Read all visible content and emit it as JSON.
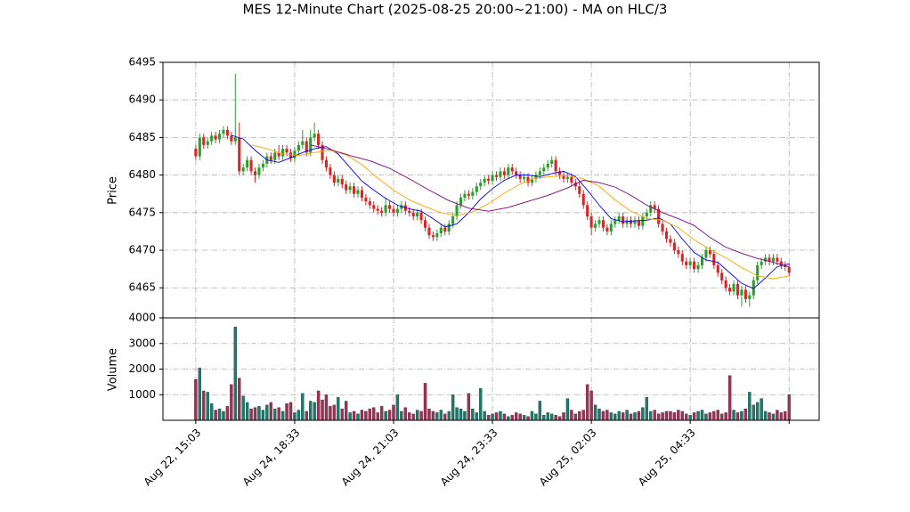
{
  "chart_data": {
    "type": "candlestick",
    "title": "MES 12-Minute Chart (2025-08-25 20:00~21:00) - MA on HLC/3",
    "ylabel": "Price",
    "volume_label": "Volume",
    "up_color": "#2ca02c",
    "down_color": "#d62728",
    "up_volume_color": "#197a6a",
    "down_volume_color": "#9c3055",
    "grid": true,
    "xlim": [
      -8.3,
      157.6
    ],
    "xticks": [
      {
        "value": 0,
        "label": "Aug 22, 15:03"
      },
      {
        "value": 25,
        "label": "Aug 24, 18:33"
      },
      {
        "value": 50,
        "label": "Aug 24, 21:03"
      },
      {
        "value": 75,
        "label": "Aug 24, 23:33"
      },
      {
        "value": 100,
        "label": "Aug 25, 02:03"
      },
      {
        "value": 125,
        "label": "Aug 25, 04:33"
      },
      {
        "value": 150,
        "label": null
      }
    ],
    "ylim": [
      6461,
      6495
    ],
    "yticks": [
      6465,
      6470,
      6475,
      6480,
      6485,
      6490,
      6495
    ],
    "volume_ylim": [
      0,
      4000
    ],
    "volume_yticks": [
      1000,
      2000,
      3000,
      4000
    ],
    "open": [
      6483.5,
      6482.5,
      6485,
      6484,
      6484.5,
      6485.25,
      6484.75,
      6485.5,
      6486,
      6485.25,
      6484.5,
      6485,
      6480.5,
      6481,
      6482,
      6480.5,
      6480,
      6481,
      6481.5,
      6482.5,
      6482,
      6483,
      6482.5,
      6483.5,
      6483,
      6482.25,
      6483.25,
      6484,
      6484.5,
      6483,
      6485,
      6485.5,
      6484,
      6482,
      6481,
      6480,
      6479,
      6479.5,
      6478.75,
      6478,
      6478.5,
      6477.5,
      6478,
      6477,
      6476.5,
      6476,
      6475.5,
      6475.25,
      6475,
      6476,
      6475.5,
      6475,
      6475.5,
      6476,
      6475.25,
      6475,
      6474.5,
      6475,
      6474,
      6473,
      6472,
      6471.75,
      6472.25,
      6473,
      6472.5,
      6473.5,
      6474.5,
      6476,
      6477,
      6477.5,
      6477.25,
      6477.75,
      6478.5,
      6479,
      6479.5,
      6479.25,
      6480,
      6479.75,
      6480.5,
      6480,
      6481,
      6480.5,
      6480,
      6479.5,
      6479.75,
      6479,
      6479.5,
      6480,
      6480.5,
      6481,
      6481.5,
      6482,
      6480.5,
      6480,
      6479.5,
      6479.75,
      6479,
      6478.5,
      6477.5,
      6476,
      6474.5,
      6473,
      6473.5,
      6474,
      6473,
      6472.5,
      6473.5,
      6474,
      6474.5,
      6473.5,
      6474,
      6473.5,
      6474,
      6473.25,
      6474.5,
      6475,
      6476,
      6475.5,
      6473.5,
      6472.5,
      6471.5,
      6471,
      6470,
      6469.5,
      6468.5,
      6468,
      6468.5,
      6467.5,
      6468,
      6469,
      6470,
      6469.5,
      6468,
      6467,
      6466,
      6465,
      6464.5,
      6465.5,
      6464,
      6464.75,
      6463.5,
      6464,
      6466,
      6468,
      6468.5,
      6469,
      6468.5,
      6469,
      6468.5,
      6468,
      6467.75
    ],
    "high": [
      6484,
      6485.5,
      6485.5,
      6485,
      6485.75,
      6485.75,
      6486,
      6486.5,
      6486.5,
      6485.75,
      6493.5,
      6487,
      6481.5,
      6482.5,
      6482.5,
      6481,
      6481.5,
      6482,
      6483,
      6483,
      6483.5,
      6484,
      6484,
      6484,
      6483.5,
      6483.75,
      6484.5,
      6486,
      6485,
      6486,
      6487,
      6486,
      6484.5,
      6482.5,
      6481.5,
      6480.5,
      6480,
      6480,
      6479.25,
      6479,
      6479,
      6478.5,
      6478.5,
      6477.5,
      6477,
      6476.5,
      6476,
      6475.75,
      6477,
      6476.5,
      6476,
      6476,
      6476.5,
      6476.5,
      6475.75,
      6475.5,
      6475.5,
      6475.5,
      6474.5,
      6473.5,
      6472.5,
      6472.75,
      6473.5,
      6473.5,
      6474,
      6475,
      6476.5,
      6477.5,
      6478,
      6478,
      6478.25,
      6479,
      6479.5,
      6480,
      6480,
      6480.5,
      6480.5,
      6481,
      6481,
      6481.5,
      6481.5,
      6481,
      6480.5,
      6480.25,
      6480.25,
      6480,
      6480.5,
      6481,
      6481.5,
      6482,
      6482.5,
      6482.5,
      6481,
      6480.5,
      6480.25,
      6480.25,
      6479.5,
      6479,
      6478,
      6476.5,
      6475,
      6474,
      6474.5,
      6474.5,
      6473.5,
      6474,
      6474.5,
      6475,
      6475,
      6474.5,
      6474.5,
      6474.5,
      6474.5,
      6475,
      6475.5,
      6476.5,
      6476.5,
      6476,
      6474,
      6473,
      6472,
      6471.5,
      6470.5,
      6470,
      6469,
      6469,
      6469,
      6468.5,
      6469.5,
      6470.5,
      6470.5,
      6470,
      6468.5,
      6467.5,
      6466.5,
      6465.5,
      6466,
      6466,
      6465.25,
      6465.25,
      6464.5,
      6466.5,
      6468.5,
      6469,
      6469.5,
      6469.5,
      6469.5,
      6469.5,
      6469,
      6468.5,
      6468.25
    ],
    "low": [
      6482,
      6482,
      6483.5,
      6483.5,
      6484,
      6484.25,
      6484.25,
      6485,
      6484.75,
      6484,
      6484,
      6480,
      6480,
      6480.5,
      6480,
      6479,
      6479.5,
      6480.5,
      6481,
      6481.5,
      6481.5,
      6482,
      6482,
      6482.5,
      6481.75,
      6481.75,
      6482.75,
      6483.5,
      6482.5,
      6482.5,
      6484.5,
      6483.5,
      6481.5,
      6480.5,
      6479.5,
      6478.5,
      6478.5,
      6478.25,
      6477.5,
      6477.5,
      6477,
      6477,
      6476.5,
      6476,
      6475.5,
      6475,
      6474.75,
      6474.5,
      6474.5,
      6475,
      6474.5,
      6474.5,
      6475,
      6474.75,
      6474.5,
      6474,
      6474,
      6473.5,
      6472.5,
      6471.5,
      6471.25,
      6471.25,
      6471.75,
      6472,
      6472,
      6473,
      6474,
      6475.5,
      6476.5,
      6476.75,
      6476.75,
      6477.25,
      6478,
      6478.5,
      6478.75,
      6478.75,
      6479.25,
      6479.25,
      6479.5,
      6479.5,
      6480,
      6479.5,
      6479,
      6479,
      6478.5,
      6478.5,
      6479,
      6479.5,
      6480,
      6480.5,
      6481,
      6480,
      6479.5,
      6479,
      6479,
      6478.5,
      6478,
      6477,
      6475.5,
      6474,
      6472,
      6472.5,
      6473,
      6472.5,
      6472,
      6472,
      6473,
      6473.5,
      6473,
      6473,
      6473,
      6473,
      6472.75,
      6472.75,
      6474,
      6474.5,
      6475,
      6473,
      6472,
      6471,
      6470.5,
      6469.5,
      6469,
      6468,
      6467.5,
      6467.5,
      6467,
      6467,
      6467.5,
      6468.5,
      6469,
      6467.5,
      6466.5,
      6465.5,
      6464.5,
      6464,
      6464,
      6463.5,
      6462.5,
      6463,
      6462.5,
      6463.5,
      6465.5,
      6467.5,
      6468,
      6468,
      6468,
      6468,
      6467.5,
      6467.25,
      6466.5
    ],
    "close": [
      6482.5,
      6485,
      6484,
      6484.5,
      6485.25,
      6484.75,
      6485.5,
      6486,
      6485.25,
      6484.5,
      6485,
      6480.5,
      6481,
      6482,
      6480.5,
      6480,
      6481,
      6481.5,
      6482.5,
      6482,
      6483,
      6482.5,
      6483.5,
      6483,
      6482.25,
      6483.25,
      6484,
      6484.5,
      6483,
      6485,
      6485.5,
      6484,
      6482,
      6481,
      6480,
      6479,
      6479.5,
      6478.75,
      6478,
      6478.5,
      6477.5,
      6478,
      6477,
      6476.5,
      6476,
      6475.5,
      6475.25,
      6475,
      6476,
      6475.5,
      6475,
      6475.5,
      6476,
      6475.25,
      6475,
      6474.5,
      6475,
      6474,
      6473,
      6472,
      6471.75,
      6472.25,
      6473,
      6472.5,
      6473.5,
      6474.5,
      6476,
      6477,
      6477.5,
      6477.25,
      6477.75,
      6478.5,
      6479,
      6479.5,
      6479.25,
      6480,
      6479.75,
      6480.5,
      6480,
      6481,
      6480.5,
      6480,
      6479.5,
      6479.75,
      6479,
      6479.5,
      6480,
      6480.5,
      6481,
      6481.5,
      6482,
      6480.5,
      6480,
      6479.5,
      6479.75,
      6479,
      6478.5,
      6477.5,
      6476,
      6474.5,
      6473,
      6473.5,
      6474,
      6473,
      6472.5,
      6473.5,
      6474,
      6474.5,
      6473.5,
      6474,
      6473.5,
      6474,
      6473.25,
      6474.5,
      6475,
      6476,
      6475.5,
      6473.5,
      6472.5,
      6471.5,
      6471,
      6470,
      6469.5,
      6468.5,
      6468,
      6468.5,
      6467.5,
      6468,
      6469,
      6470,
      6469.5,
      6468,
      6467,
      6466,
      6465,
      6464.5,
      6465.5,
      6464,
      6464.75,
      6463.5,
      6464,
      6466,
      6468,
      6468.5,
      6469,
      6468.5,
      6469,
      6468.5,
      6468,
      6467.75,
      6467
    ],
    "volume": [
      1600,
      2050,
      1150,
      1100,
      650,
      400,
      450,
      350,
      550,
      1400,
      3650,
      1650,
      950,
      700,
      450,
      500,
      550,
      400,
      600,
      700,
      450,
      500,
      350,
      650,
      700,
      300,
      400,
      1050,
      350,
      750,
      700,
      1150,
      800,
      1000,
      550,
      600,
      900,
      450,
      750,
      300,
      350,
      250,
      400,
      350,
      450,
      500,
      300,
      550,
      350,
      400,
      600,
      1000,
      350,
      500,
      300,
      250,
      400,
      350,
      1450,
      450,
      350,
      300,
      400,
      250,
      350,
      1000,
      500,
      450,
      350,
      1050,
      450,
      300,
      1250,
      350,
      200,
      250,
      300,
      350,
      250,
      150,
      200,
      300,
      250,
      200,
      150,
      350,
      250,
      750,
      200,
      300,
      250,
      200,
      150,
      300,
      850,
      400,
      250,
      350,
      400,
      1400,
      1150,
      600,
      450,
      350,
      400,
      300,
      250,
      350,
      300,
      400,
      250,
      300,
      350,
      500,
      900,
      350,
      400,
      250,
      300,
      350,
      350,
      300,
      400,
      350,
      250,
      200,
      300,
      350,
      400,
      250,
      300,
      350,
      400,
      250,
      300,
      1750,
      400,
      300,
      350,
      450,
      1100,
      600,
      700,
      850,
      350,
      300,
      250,
      400,
      300,
      350,
      1000
    ],
    "series": [
      {
        "color": "#0000ee",
        "x": [
          9,
          12,
          15,
          18,
          21,
          24,
          27,
          30,
          33,
          36,
          39,
          42,
          45,
          48,
          51,
          54,
          57,
          60,
          63,
          66,
          69,
          72,
          75,
          78,
          81,
          84,
          87,
          90,
          93,
          96,
          99,
          102,
          105,
          108,
          111,
          114,
          117,
          120,
          123,
          126,
          129,
          132,
          135,
          138,
          141,
          144,
          147,
          150
        ],
        "values": [
          6485.3,
          6484.8,
          6483.3,
          6482,
          6481.7,
          6482.3,
          6483,
          6483.5,
          6483.8,
          6482.8,
          6481,
          6479.2,
          6478,
          6476.9,
          6476,
          6475.5,
          6475.2,
          6474.2,
          6473.1,
          6473.5,
          6475,
          6476.8,
          6478.2,
          6479.3,
          6480,
          6480,
          6479.8,
          6480.2,
          6480.5,
          6479.8,
          6478,
          6476,
          6474.2,
          6473.8,
          6473.9,
          6474,
          6474.3,
          6473.5,
          6471.5,
          6469.7,
          6468.7,
          6468.4,
          6467,
          6465.6,
          6464.9,
          6466.3,
          6467.8,
          6468.2
        ]
      },
      {
        "color": "#ffa500",
        "x": [
          14,
          18,
          22,
          26,
          30,
          34,
          38,
          42,
          46,
          50,
          54,
          58,
          62,
          66,
          70,
          74,
          78,
          82,
          86,
          90,
          94,
          98,
          102,
          106,
          110,
          114,
          118,
          122,
          126,
          130,
          134,
          138,
          142,
          146,
          150
        ],
        "values": [
          6484,
          6483.5,
          6482.8,
          6482.6,
          6483,
          6483.3,
          6482.7,
          6481.4,
          6479.6,
          6478,
          6476.7,
          6475.8,
          6475,
          6474.6,
          6475.1,
          6476.2,
          6477.6,
          6478.8,
          6479.6,
          6479.8,
          6479.9,
          6479.5,
          6478.5,
          6476.7,
          6475.2,
          6474.2,
          6474,
          6473,
          6471.4,
          6470.1,
          6469,
          6467.7,
          6466.6,
          6466.2,
          6466.6
        ]
      },
      {
        "color": "#800080",
        "x": [
          29,
          34,
          39,
          44,
          49,
          54,
          59,
          64,
          69,
          74,
          79,
          84,
          89,
          94,
          98,
          102,
          106,
          110,
          114,
          118,
          122,
          126,
          130,
          134,
          138,
          142,
          146,
          150
        ],
        "values": [
          6484,
          6483.4,
          6482.6,
          6481.9,
          6480.9,
          6479.5,
          6478,
          6476.6,
          6475.6,
          6475.2,
          6475.7,
          6476.5,
          6477.3,
          6478.3,
          6479.3,
          6479,
          6478.4,
          6477.3,
          6476,
          6475,
          6474.2,
          6473.3,
          6471.7,
          6470.4,
          6469.6,
          6468.9,
          6468.4,
          6467.8
        ]
      }
    ]
  }
}
